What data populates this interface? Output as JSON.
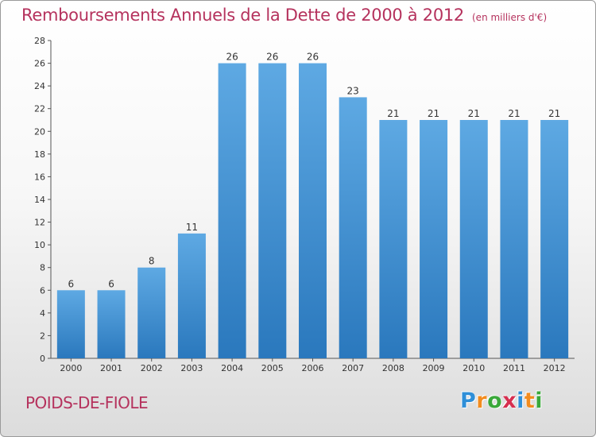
{
  "header": {
    "title": "Remboursements Annuels de la Dette de 2000 à 2012",
    "unit": "(en milliers d'€)"
  },
  "footer": {
    "town": "POIDS-DE-FIOLE",
    "brand_letters": [
      "P",
      "r",
      "o",
      "x",
      "i",
      "t",
      "i"
    ],
    "brand_colors": [
      "#2f8fd8",
      "#f28c1f",
      "#3aa83a",
      "#d62f4f",
      "#2f8fd8",
      "#f28c1f",
      "#3aa83a"
    ]
  },
  "chart_data": {
    "type": "bar",
    "categories": [
      "2000",
      "2001",
      "2002",
      "2003",
      "2004",
      "2005",
      "2006",
      "2007",
      "2008",
      "2009",
      "2010",
      "2011",
      "2012"
    ],
    "values": [
      6,
      6,
      8,
      11,
      26,
      26,
      26,
      23,
      21,
      21,
      21,
      21,
      21
    ],
    "ylim": [
      0,
      28
    ],
    "yticks": [
      0,
      2,
      4,
      6,
      8,
      10,
      12,
      14,
      16,
      18,
      20,
      22,
      24,
      26,
      28
    ],
    "grid": false,
    "bar_color_top": "#5ea9e3",
    "bar_color_bottom": "#2a78bd"
  }
}
